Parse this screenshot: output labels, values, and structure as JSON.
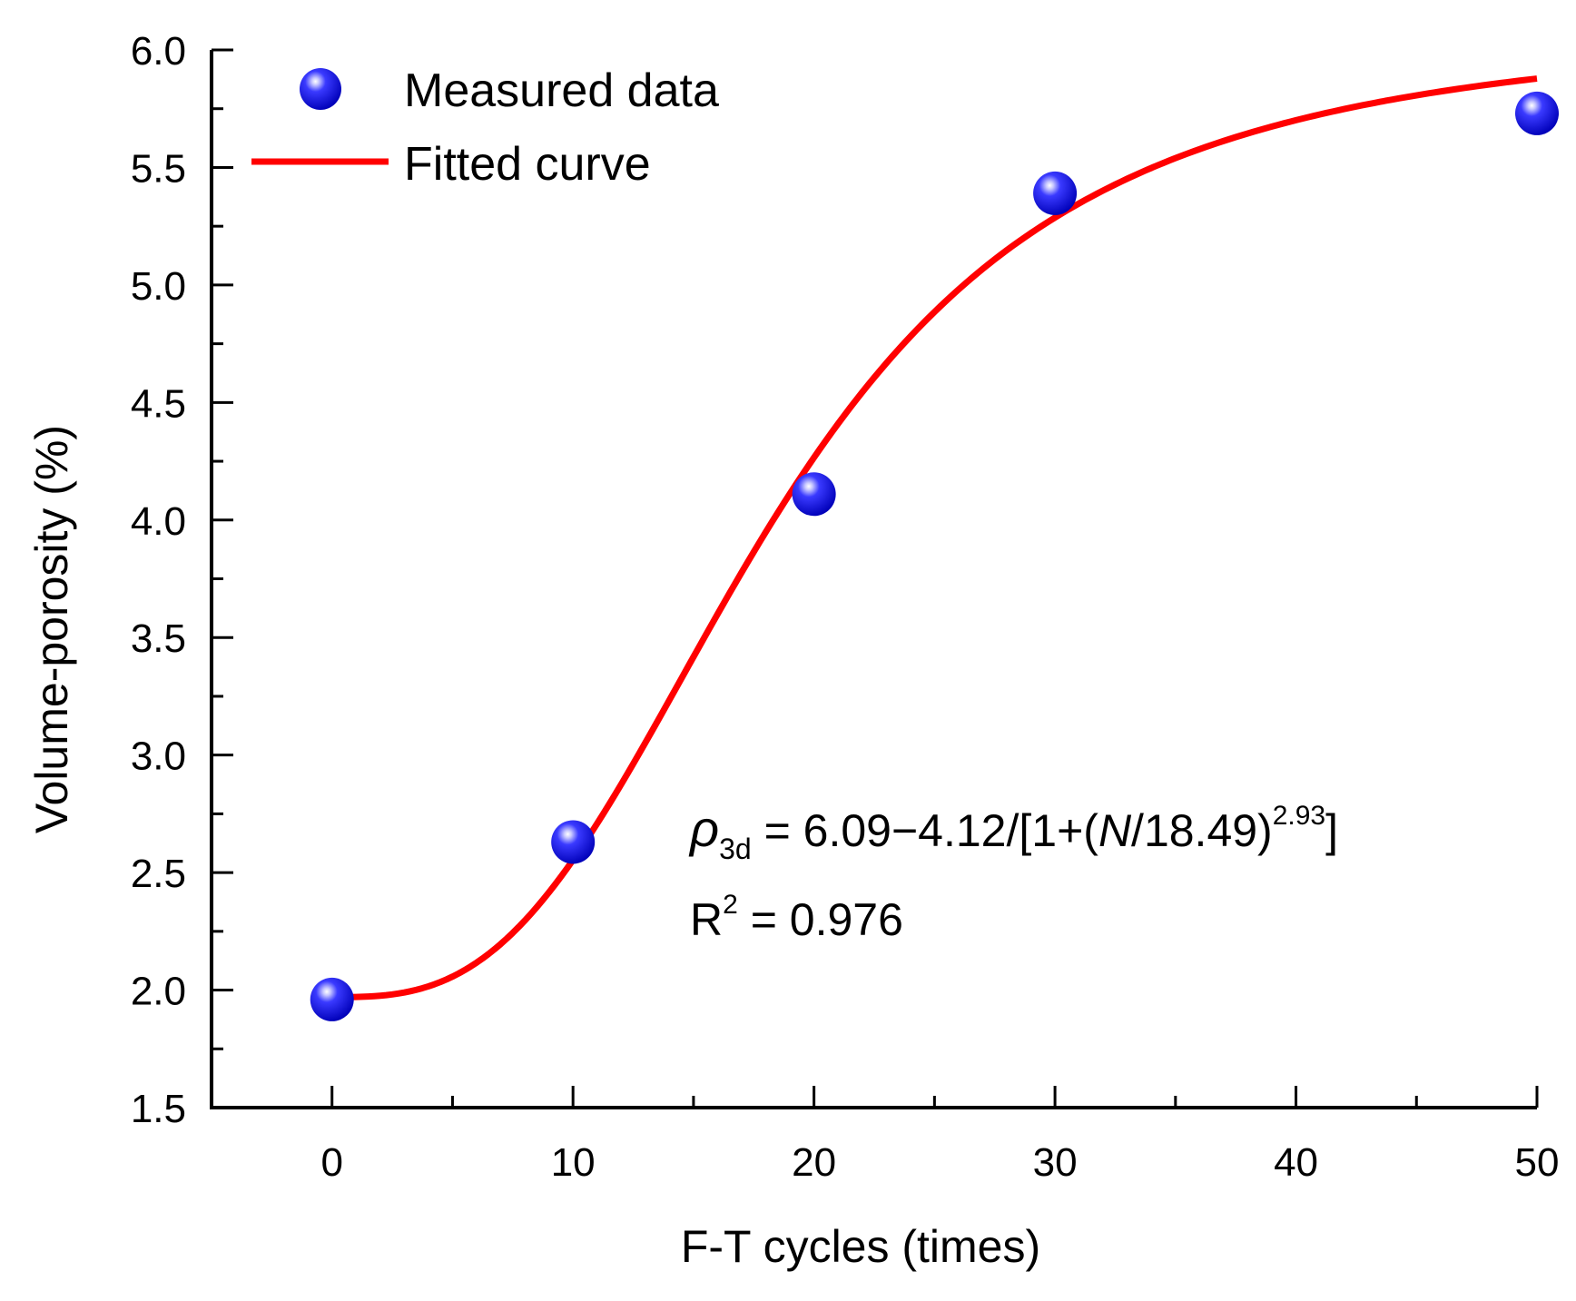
{
  "chart_data": {
    "type": "scatter",
    "xlabel": "F-T cycles (times)",
    "ylabel": "Volume-porosity (%)",
    "xlim": [
      -5,
      50
    ],
    "ylim": [
      1.5,
      6.0
    ],
    "x_ticks": [
      0,
      10,
      20,
      30,
      40,
      50
    ],
    "x_tick_labels": [
      "0",
      "10",
      "20",
      "30",
      "40",
      "50"
    ],
    "y_ticks": [
      1.5,
      2.0,
      2.5,
      3.0,
      3.5,
      4.0,
      4.5,
      5.0,
      5.5,
      6.0
    ],
    "y_tick_labels": [
      "1.5",
      "2.0",
      "2.5",
      "3.0",
      "3.5",
      "4.0",
      "4.5",
      "5.0",
      "5.5",
      "6.0"
    ],
    "series": [
      {
        "name": "Measured data",
        "kind": "scatter",
        "color": "#1010ee",
        "x": [
          0,
          10,
          20,
          30,
          50
        ],
        "y": [
          1.96,
          2.63,
          4.11,
          5.39,
          5.73
        ]
      },
      {
        "name": "Fitted curve",
        "kind": "line",
        "color": "#ff0000",
        "model": {
          "A2": 6.09,
          "A1": 4.12,
          "x0": 18.49,
          "p": 2.93
        },
        "x_range": [
          0,
          50
        ]
      }
    ],
    "legend": {
      "position": "top-left",
      "items": [
        "Measured data",
        "Fitted curve"
      ]
    },
    "annotation": {
      "equation": {
        "symbol": "ρ",
        "symbol_sub": "3d",
        "part1": " = 6.09−4.12/[1+(",
        "var": "N",
        "part2": "/18.49)",
        "exponent": "2.93",
        "close": "]"
      },
      "r2": {
        "base": "R",
        "sup": "2",
        "rest": " = 0.976"
      },
      "position": "lower-right"
    }
  }
}
